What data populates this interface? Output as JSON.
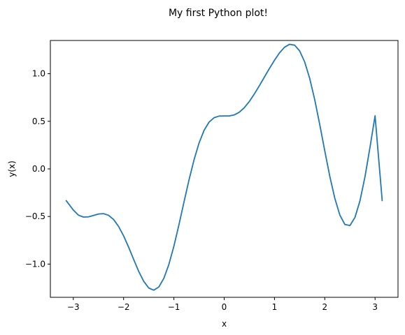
{
  "chart_data": {
    "type": "line",
    "title": "My first Python plot!",
    "xlabel": "x",
    "ylabel": "y(x)",
    "xlim": [
      -3.456,
      3.456
    ],
    "ylim": [
      -1.349,
      1.349
    ],
    "xticks": [
      {
        "value": -3,
        "label": "−3"
      },
      {
        "value": -2,
        "label": "−2"
      },
      {
        "value": -1,
        "label": "−1"
      },
      {
        "value": 0,
        "label": "0"
      },
      {
        "value": 1,
        "label": "1"
      },
      {
        "value": 2,
        "label": "2"
      },
      {
        "value": 3,
        "label": "3"
      }
    ],
    "yticks": [
      {
        "value": -1.0,
        "label": "−1.0"
      },
      {
        "value": -0.5,
        "label": "−0.5"
      },
      {
        "value": 0.0,
        "label": "0.0"
      },
      {
        "value": 0.5,
        "label": "0.5"
      },
      {
        "value": 1.0,
        "label": "1.0"
      }
    ],
    "grid": false,
    "series": [
      {
        "color": "#1f77b4",
        "x": [
          -3.1416,
          -3.0,
          -2.9,
          -2.8,
          -2.7,
          -2.6,
          -2.5,
          -2.4,
          -2.3,
          -2.2,
          -2.1,
          -2.0,
          -1.9,
          -1.8,
          -1.7,
          -1.6,
          -1.5,
          -1.4,
          -1.3,
          -1.2,
          -1.1,
          -1.0,
          -0.9,
          -0.8,
          -0.7,
          -0.6,
          -0.5,
          -0.4,
          -0.3,
          -0.2,
          -0.1,
          0.0,
          0.1,
          0.2,
          0.3,
          0.4,
          0.5,
          0.6,
          0.7,
          0.8,
          0.9,
          1.0,
          1.1,
          1.2,
          1.3,
          1.4,
          1.5,
          1.6,
          1.7,
          1.8,
          1.9,
          2.0,
          2.1,
          2.2,
          2.3,
          2.4,
          2.5,
          2.6,
          2.7,
          2.8,
          2.9,
          3.0,
          3.1416
        ],
        "y": [
          -0.333,
          -0.432,
          -0.485,
          -0.506,
          -0.504,
          -0.489,
          -0.474,
          -0.47,
          -0.487,
          -0.531,
          -0.604,
          -0.703,
          -0.822,
          -0.951,
          -1.076,
          -1.181,
          -1.251,
          -1.274,
          -1.241,
          -1.15,
          -1.004,
          -0.812,
          -0.588,
          -0.35,
          -0.117,
          0.094,
          0.271,
          0.405,
          0.492,
          0.538,
          0.555,
          0.556,
          0.556,
          0.567,
          0.595,
          0.643,
          0.708,
          0.787,
          0.874,
          0.965,
          1.055,
          1.141,
          1.219,
          1.278,
          1.309,
          1.3,
          1.24,
          1.124,
          0.951,
          0.727,
          0.466,
          0.189,
          -0.078,
          -0.31,
          -0.485,
          -0.584,
          -0.595,
          -0.51,
          -0.335,
          -0.081,
          0.23,
          0.558,
          -0.333
        ]
      }
    ]
  }
}
